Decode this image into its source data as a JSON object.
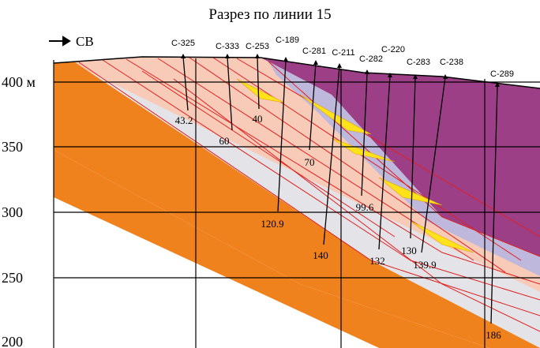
{
  "title": "Разрез по линии 15",
  "direction": "СВ",
  "elevation_labels": [
    "400 м",
    "350",
    "300",
    "250",
    "200"
  ],
  "wells": [
    {
      "name": "С-325",
      "depth": "43.2"
    },
    {
      "name": "С-333",
      "depth": "60"
    },
    {
      "name": "С-253",
      "depth": "40"
    },
    {
      "name": "С-189",
      "depth": "120.9"
    },
    {
      "name": "С-281",
      "depth": "70"
    },
    {
      "name": "С-211",
      "depth": "140"
    },
    {
      "name": "С-282",
      "depth": "99.6"
    },
    {
      "name": "С-220",
      "depth": "132"
    },
    {
      "name": "С-283",
      "depth": "130"
    },
    {
      "name": "С-238",
      "depth": "139.9"
    },
    {
      "name": "С-289",
      "depth": "186"
    }
  ]
}
